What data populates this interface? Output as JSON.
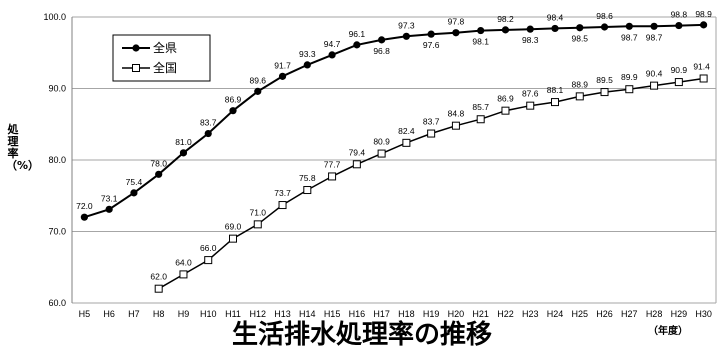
{
  "chart_data": {
    "type": "line",
    "title": "生活排水処理率の推移",
    "ylabel": "処理率（%）",
    "xunit": "（年度）",
    "ylim": [
      60,
      100
    ],
    "yticks": [
      "60.0",
      "70.0",
      "80.0",
      "90.0",
      "100.0"
    ],
    "categories": [
      "H5",
      "H6",
      "H7",
      "H8",
      "H9",
      "H10",
      "H11",
      "H12",
      "H13",
      "H14",
      "H15",
      "H16",
      "H17",
      "H18",
      "H19",
      "H20",
      "H21",
      "H22",
      "H23",
      "H24",
      "H25",
      "H26",
      "H27",
      "H28",
      "H29",
      "H30"
    ],
    "grid": true,
    "legend_position": "top-left",
    "series": [
      {
        "name": "全県",
        "marker": "filled-circle",
        "color": "#000000",
        "values": [
          72.0,
          73.1,
          75.4,
          78.0,
          81.0,
          83.7,
          86.9,
          89.6,
          91.7,
          93.3,
          94.7,
          96.1,
          96.8,
          97.3,
          97.6,
          97.8,
          98.1,
          98.2,
          98.3,
          98.4,
          98.5,
          98.6,
          98.7,
          98.7,
          98.8,
          98.9
        ]
      },
      {
        "name": "全国",
        "marker": "open-square",
        "color": "#000000",
        "values": [
          null,
          null,
          null,
          62.0,
          64.0,
          66.0,
          69.0,
          71.0,
          73.7,
          75.8,
          77.7,
          79.4,
          80.9,
          82.4,
          83.7,
          84.8,
          85.7,
          86.9,
          87.6,
          88.1,
          88.9,
          89.5,
          89.9,
          90.4,
          90.9,
          91.4
        ]
      }
    ]
  }
}
